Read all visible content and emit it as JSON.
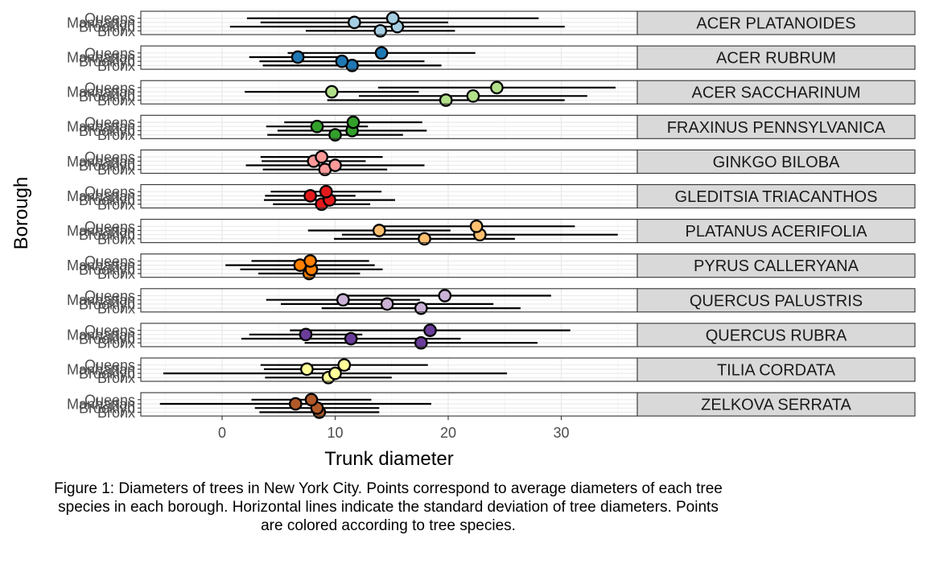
{
  "chart_data": {
    "type": "faceted-pointrange",
    "xlabel": "Trunk diameter",
    "ylabel": "Borough",
    "x_ticks": [
      0,
      10,
      20,
      30
    ],
    "xlim": [
      -7.5,
      36.8
    ],
    "grid": true,
    "legend": "none",
    "caption": "Figure 1: Diameters of trees in New York City. Points correspond to average diameters of each tree species in each borough. Horizontal lines indicate the standard deviation of tree diameters. Points are colored according to tree species.",
    "boroughs": [
      "Bronx",
      "Brooklyn",
      "Manhattan",
      "Queens"
    ],
    "facets": [
      {
        "species": "ACER PLATANOIDES",
        "color": "#a6cee3",
        "means": [
          14.0,
          15.5,
          11.7,
          15.1
        ],
        "sds": [
          6.6,
          14.8,
          8.3,
          12.9
        ]
      },
      {
        "species": "ACER RUBRUM",
        "color": "#1f78b4",
        "means": [
          11.5,
          10.6,
          6.7,
          14.1
        ],
        "sds": [
          7.9,
          7.3,
          4.3,
          8.3
        ]
      },
      {
        "species": "ACER SACCHARINUM",
        "color": "#b2df8a",
        "means": [
          19.8,
          22.2,
          9.7,
          24.3
        ],
        "sds": [
          10.5,
          10.1,
          7.7,
          10.5
        ]
      },
      {
        "species": "FRAXINUS PENNSYLVANICA",
        "color": "#33a02c",
        "means": [
          10.0,
          11.5,
          8.4,
          11.6
        ],
        "sds": [
          6.0,
          6.6,
          4.5,
          6.1
        ]
      },
      {
        "species": "GINKGO BILOBA",
        "color": "#fb9a99",
        "means": [
          9.1,
          10.0,
          8.1,
          8.8
        ],
        "sds": [
          5.5,
          7.9,
          4.6,
          5.4
        ]
      },
      {
        "species": "GLEDITSIA TRIACANTHOS",
        "color": "#e31a1c",
        "means": [
          8.8,
          9.5,
          7.8,
          9.2
        ],
        "sds": [
          4.3,
          5.8,
          4.0,
          4.9
        ]
      },
      {
        "species": "PLATANUS ACERIFOLIA",
        "color": "#fdbf6f",
        "means": [
          17.9,
          22.8,
          13.9,
          22.5
        ],
        "sds": [
          8.0,
          12.2,
          6.3,
          8.7
        ]
      },
      {
        "species": "PYRUS CALLERYANA",
        "color": "#ff7f00",
        "means": [
          7.7,
          7.9,
          6.9,
          7.8
        ],
        "sds": [
          4.5,
          6.3,
          6.6,
          5.2
        ]
      },
      {
        "species": "QUERCUS PALUSTRIS",
        "color": "#cab2d6",
        "means": [
          17.6,
          14.6,
          10.7,
          19.7
        ],
        "sds": [
          8.8,
          9.4,
          6.8,
          9.4
        ]
      },
      {
        "species": "QUERCUS RUBRA",
        "color": "#6a3d9a",
        "means": [
          17.6,
          11.4,
          7.4,
          18.4
        ],
        "sds": [
          10.3,
          9.7,
          5.0,
          12.4
        ]
      },
      {
        "species": "TILIA CORDATA",
        "color": "#ffff99",
        "means": [
          9.4,
          10.0,
          7.5,
          10.8
        ],
        "sds": [
          5.6,
          15.2,
          3.8,
          7.4
        ]
      },
      {
        "species": "ZELKOVA SERRATA",
        "color": "#b15928",
        "means": [
          8.6,
          8.4,
          6.5,
          7.9
        ],
        "sds": [
          5.3,
          5.5,
          12.0,
          5.3
        ]
      }
    ]
  }
}
